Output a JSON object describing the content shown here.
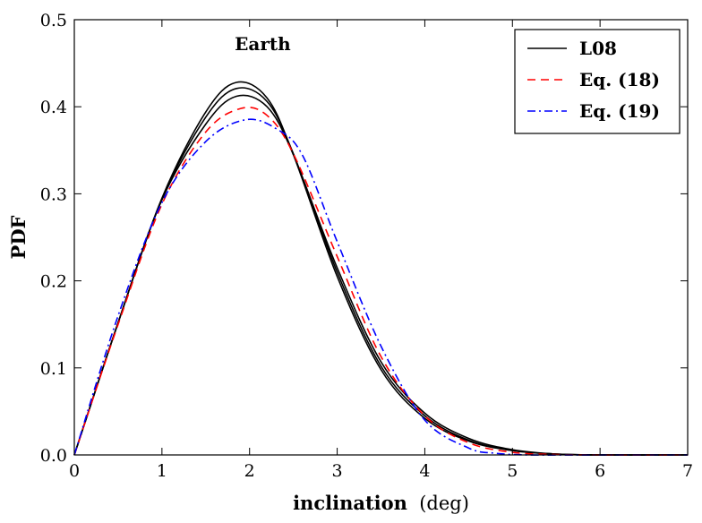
{
  "chart_data": {
    "type": "line",
    "xlabel": "inclination",
    "xlabel_unit": "(deg)",
    "ylabel": "PDF",
    "annotation": "Earth",
    "xlim": [
      0,
      7
    ],
    "ylim": [
      0,
      0.5
    ],
    "xticks": [
      "0",
      "1",
      "2",
      "3",
      "4",
      "5",
      "6",
      "7"
    ],
    "yticks": [
      "0.0",
      "0.1",
      "0.2",
      "0.3",
      "0.4",
      "0.5"
    ],
    "grid": false,
    "legend_position": "top-right",
    "legend": [
      {
        "label": "L08",
        "color": "#000000",
        "style": "solid"
      },
      {
        "label": "Eq. (18)",
        "color": "#ff0000",
        "style": "dashed"
      },
      {
        "label": "Eq. (19)",
        "color": "#0000ff",
        "style": "dashdot"
      }
    ],
    "series": [
      {
        "group": "L08",
        "color": "#000000",
        "style": "solid",
        "x": [
          0,
          0.5,
          1.0,
          1.5,
          1.85,
          2.2,
          2.5,
          3.0,
          3.5,
          4.0,
          4.5,
          5.0,
          5.5,
          6.0,
          7.0
        ],
        "y": [
          0,
          0.152,
          0.295,
          0.394,
          0.428,
          0.41,
          0.345,
          0.205,
          0.098,
          0.042,
          0.016,
          0.005,
          0.001,
          0.0,
          0.0
        ]
      },
      {
        "group": "L08",
        "color": "#000000",
        "style": "solid",
        "x": [
          0,
          0.5,
          1.0,
          1.5,
          1.85,
          2.2,
          2.5,
          3.0,
          3.5,
          4.0,
          4.5,
          5.0,
          5.5,
          6.0,
          7.0
        ],
        "y": [
          0,
          0.152,
          0.294,
          0.388,
          0.421,
          0.406,
          0.346,
          0.21,
          0.102,
          0.045,
          0.017,
          0.005,
          0.001,
          0.0,
          0.0
        ]
      },
      {
        "group": "L08",
        "color": "#000000",
        "style": "solid",
        "x": [
          0,
          0.5,
          1.0,
          1.5,
          1.85,
          2.2,
          2.5,
          3.0,
          3.5,
          4.0,
          4.5,
          5.0,
          5.5,
          6.0,
          7.0
        ],
        "y": [
          0,
          0.152,
          0.293,
          0.38,
          0.412,
          0.4,
          0.345,
          0.215,
          0.107,
          0.048,
          0.019,
          0.006,
          0.001,
          0.0,
          0.0
        ]
      },
      {
        "group": "Eq. (18)",
        "color": "#ff0000",
        "style": "dashed",
        "x": [
          0,
          0.5,
          1.0,
          1.5,
          1.9,
          2.2,
          2.5,
          3.0,
          3.5,
          4.0,
          4.5,
          5.0,
          5.5,
          6.0,
          7.0
        ],
        "y": [
          0,
          0.15,
          0.288,
          0.371,
          0.398,
          0.39,
          0.346,
          0.228,
          0.113,
          0.045,
          0.014,
          0.003,
          0.0005,
          0.0,
          0.0
        ]
      },
      {
        "group": "Eq. (19)",
        "color": "#0000ff",
        "style": "dashdot",
        "x": [
          0,
          0.5,
          1.0,
          1.5,
          1.95,
          2.3,
          2.6,
          3.0,
          3.5,
          4.0,
          4.5,
          4.8,
          5.2,
          6.0,
          7.0
        ],
        "y": [
          0,
          0.16,
          0.29,
          0.36,
          0.385,
          0.375,
          0.345,
          0.245,
          0.125,
          0.04,
          0.008,
          0.002,
          0.0,
          0.0,
          0.0
        ]
      }
    ]
  }
}
